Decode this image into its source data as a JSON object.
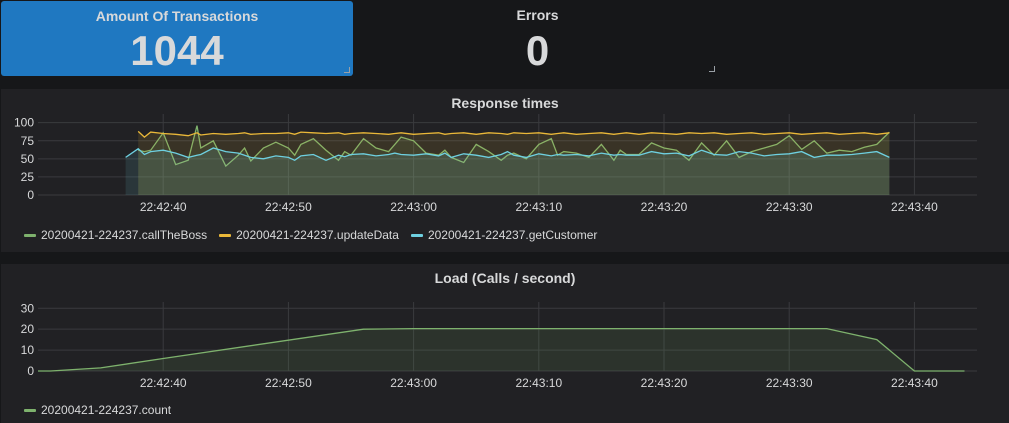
{
  "stats": {
    "transactions": {
      "title": "Amount Of Transactions",
      "value": "1044",
      "background": "#1f78c1"
    },
    "errors": {
      "title": "Errors",
      "value": "0"
    }
  },
  "response_panel": {
    "title": "Response times",
    "legend": [
      {
        "label": "20200421-224237.callTheBoss",
        "color": "#7eb26d"
      },
      {
        "label": "20200421-224237.updateData",
        "color": "#eab839"
      },
      {
        "label": "20200421-224237.getCustomer",
        "color": "#6ed0e0"
      }
    ]
  },
  "load_panel": {
    "title": "Load (Calls / second)",
    "legend": [
      {
        "label": "20200421-224237.count",
        "color": "#7eb26d"
      }
    ]
  },
  "chart_data": [
    {
      "type": "line",
      "title": "Response times",
      "x_ticks": [
        "22:42:40",
        "22:42:50",
        "22:43:00",
        "22:43:10",
        "22:43:20",
        "22:43:30",
        "22:43:40"
      ],
      "y_ticks": [
        "0",
        "25",
        "50",
        "75",
        "100"
      ],
      "ylim": [
        0,
        112
      ],
      "grid": true,
      "legend_position": "bottom-left",
      "series": [
        {
          "name": "20200421-224237.callTheBoss",
          "color": "#7eb26d",
          "x": [
            "22:42:38",
            "22:42:38.5",
            "22:42:39",
            "22:42:40",
            "22:42:41",
            "22:42:42",
            "22:42:42.7",
            "22:42:43",
            "22:42:44",
            "22:42:45",
            "22:42:46",
            "22:42:46.5",
            "22:42:47",
            "22:42:48",
            "22:42:49",
            "22:42:50",
            "22:42:50.5",
            "22:42:51",
            "22:42:52",
            "22:42:53",
            "22:42:54",
            "22:42:54.5",
            "22:42:55",
            "22:42:56",
            "22:42:57",
            "22:42:58",
            "22:42:58.5",
            "22:42:59",
            "22:43:00",
            "22:43:01",
            "22:43:02",
            "22:43:02.5",
            "22:43:03",
            "22:43:04",
            "22:43:05",
            "22:43:06",
            "22:43:07",
            "22:43:07.5",
            "22:43:08",
            "22:43:09",
            "22:43:10",
            "22:43:11",
            "22:43:11.5",
            "22:43:12",
            "22:43:13",
            "22:43:14",
            "22:43:15",
            "22:43:16",
            "22:43:16.5",
            "22:43:17",
            "22:43:18",
            "22:43:19",
            "22:43:20",
            "22:43:21",
            "22:43:22",
            "22:43:23",
            "22:43:24",
            "22:43:25",
            "22:43:26",
            "22:43:27",
            "22:43:28",
            "22:43:29",
            "22:43:30",
            "22:43:31",
            "22:43:32",
            "22:43:33",
            "22:43:34",
            "22:43:35",
            "22:43:36",
            "22:43:37",
            "22:43:38"
          ],
          "values": [
            62,
            60,
            62,
            86,
            42,
            48,
            96,
            65,
            75,
            40,
            55,
            65,
            47,
            65,
            73,
            65,
            55,
            70,
            78,
            62,
            48,
            60,
            55,
            78,
            65,
            60,
            70,
            80,
            75,
            58,
            55,
            62,
            52,
            45,
            70,
            60,
            48,
            55,
            58,
            50,
            70,
            78,
            55,
            60,
            58,
            52,
            70,
            48,
            62,
            56,
            56,
            72,
            65,
            62,
            48,
            72,
            55,
            75,
            52,
            60,
            65,
            70,
            82,
            63,
            75,
            58,
            62,
            60,
            66,
            70,
            87
          ]
        },
        {
          "name": "20200421-224237.updateData",
          "color": "#eab839",
          "x": [
            "22:42:38",
            "22:42:38.5",
            "22:42:39",
            "22:42:40",
            "22:42:41",
            "22:42:42",
            "22:42:42.7",
            "22:42:43",
            "22:42:44",
            "22:42:45",
            "22:42:46",
            "22:42:46.5",
            "22:42:47",
            "22:42:48",
            "22:42:49",
            "22:42:50",
            "22:42:50.5",
            "22:42:51",
            "22:42:52",
            "22:42:53",
            "22:42:54",
            "22:42:54.5",
            "22:42:55",
            "22:42:56",
            "22:42:57",
            "22:42:58",
            "22:42:58.5",
            "22:42:59",
            "22:43:00",
            "22:43:01",
            "22:43:02",
            "22:43:02.5",
            "22:43:03",
            "22:43:04",
            "22:43:05",
            "22:43:06",
            "22:43:07",
            "22:43:07.5",
            "22:43:08",
            "22:43:09",
            "22:43:10",
            "22:43:11",
            "22:43:11.5",
            "22:43:12",
            "22:43:13",
            "22:43:14",
            "22:43:15",
            "22:43:16",
            "22:43:16.5",
            "22:43:17",
            "22:43:18",
            "22:43:19",
            "22:43:20",
            "22:43:21",
            "22:43:22",
            "22:43:23",
            "22:43:24",
            "22:43:25",
            "22:43:26",
            "22:43:27",
            "22:43:28",
            "22:43:29",
            "22:43:30",
            "22:43:31",
            "22:43:32",
            "22:43:33",
            "22:43:34",
            "22:43:35",
            "22:43:36",
            "22:43:37",
            "22:43:38"
          ],
          "values": [
            88,
            80,
            87,
            85,
            84,
            82,
            86,
            83,
            85,
            84,
            85,
            86,
            84,
            85,
            85,
            86,
            84,
            87,
            86,
            85,
            86,
            84,
            85,
            86,
            85,
            84,
            85,
            86,
            84,
            85,
            86,
            84,
            85,
            86,
            84,
            86,
            85,
            84,
            86,
            85,
            86,
            84,
            85,
            86,
            84,
            85,
            86,
            84,
            85,
            86,
            84,
            86,
            85,
            84,
            86,
            85,
            86,
            84,
            85,
            86,
            84,
            85,
            86,
            84,
            85,
            86,
            84,
            85,
            86,
            84,
            86
          ]
        },
        {
          "name": "20200421-224237.getCustomer",
          "color": "#6ed0e0",
          "x": [
            "22:42:37",
            "22:42:38",
            "22:42:38.5",
            "22:42:39",
            "22:42:40",
            "22:42:41",
            "22:42:42",
            "22:42:42.7",
            "22:42:43",
            "22:42:44",
            "22:42:45",
            "22:42:46",
            "22:42:46.5",
            "22:42:47",
            "22:42:48",
            "22:42:49",
            "22:42:50",
            "22:42:50.5",
            "22:42:51",
            "22:42:52",
            "22:42:53",
            "22:42:54",
            "22:42:54.5",
            "22:42:55",
            "22:42:56",
            "22:42:57",
            "22:42:58",
            "22:42:58.5",
            "22:42:59",
            "22:43:00",
            "22:43:01",
            "22:43:02",
            "22:43:02.5",
            "22:43:03",
            "22:43:04",
            "22:43:05",
            "22:43:06",
            "22:43:07",
            "22:43:07.5",
            "22:43:08",
            "22:43:09",
            "22:43:10",
            "22:43:11",
            "22:43:11.5",
            "22:43:12",
            "22:43:13",
            "22:43:14",
            "22:43:15",
            "22:43:16",
            "22:43:16.5",
            "22:43:17",
            "22:43:18",
            "22:43:19",
            "22:43:20",
            "22:43:21",
            "22:43:22",
            "22:43:23",
            "22:43:24",
            "22:43:25",
            "22:43:26",
            "22:43:27",
            "22:43:28",
            "22:43:29",
            "22:43:30",
            "22:43:31",
            "22:43:32",
            "22:43:33",
            "22:43:34",
            "22:43:35",
            "22:43:36",
            "22:43:37",
            "22:43:38"
          ],
          "values": [
            52,
            64,
            56,
            60,
            62,
            58,
            52,
            55,
            56,
            65,
            60,
            58,
            55,
            52,
            50,
            54,
            52,
            48,
            54,
            56,
            48,
            55,
            53,
            56,
            57,
            54,
            56,
            58,
            56,
            55,
            57,
            54,
            58,
            52,
            57,
            55,
            52,
            56,
            60,
            55,
            52,
            57,
            54,
            56,
            55,
            56,
            54,
            58,
            55,
            56,
            55,
            55,
            60,
            57,
            58,
            54,
            62,
            56,
            55,
            60,
            58,
            54,
            56,
            57,
            60,
            52,
            55,
            55,
            56,
            58,
            60,
            52
          ]
        }
      ]
    },
    {
      "type": "area",
      "title": "Load (Calls / second)",
      "x_ticks": [
        "22:42:40",
        "22:42:50",
        "22:43:00",
        "22:43:10",
        "22:43:20",
        "22:43:30",
        "22:43:40"
      ],
      "y_ticks": [
        "0",
        "10",
        "20",
        "30"
      ],
      "ylim": [
        0,
        33
      ],
      "grid": true,
      "legend_position": "bottom-left",
      "series": [
        {
          "name": "20200421-224237.count",
          "color": "#7eb26d",
          "x": [
            "22:42:30",
            "22:42:31",
            "22:42:35",
            "22:42:40",
            "22:42:56",
            "22:43:00",
            "22:43:10",
            "22:43:20",
            "22:43:30",
            "22:43:33",
            "22:43:37",
            "22:43:40",
            "22:43:44"
          ],
          "values": [
            0,
            0,
            1.5,
            6,
            20,
            20.3,
            20.3,
            20.3,
            20.3,
            20.3,
            15,
            0,
            0
          ]
        }
      ]
    }
  ]
}
